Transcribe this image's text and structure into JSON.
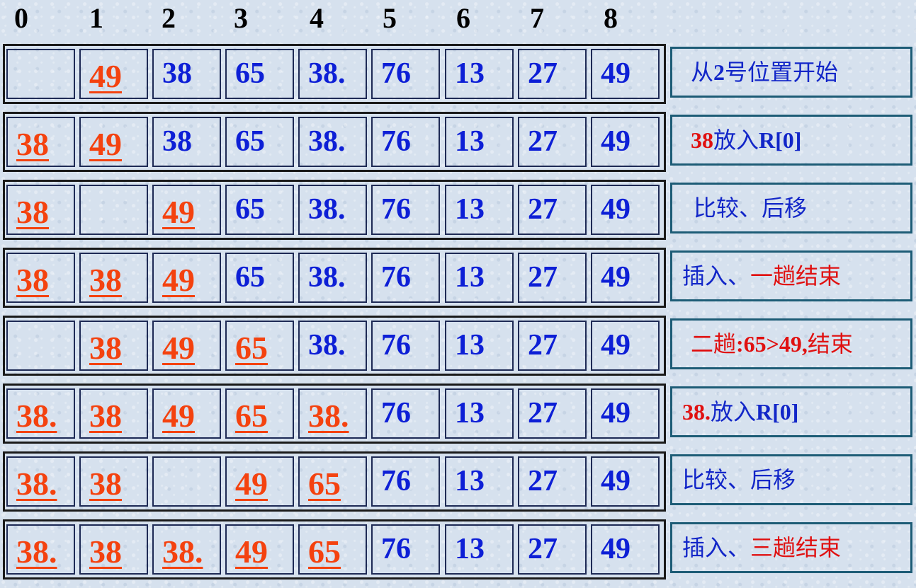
{
  "indices": [
    "0",
    "1",
    "2",
    "3",
    "4",
    "5",
    "6",
    "7",
    "8"
  ],
  "colors": {
    "blue": "#0d1fd6",
    "red": "#f4420f",
    "note_text": "#1226c8",
    "note_red": "#e01010"
  },
  "rows": [
    {
      "cells": [
        {
          "v": "",
          "c": "blue"
        },
        {
          "v": "49",
          "c": "red"
        },
        {
          "v": "38",
          "c": "blue"
        },
        {
          "v": "65",
          "c": "blue"
        },
        {
          "v": "38.",
          "c": "blue"
        },
        {
          "v": "76",
          "c": "blue"
        },
        {
          "v": "13",
          "c": "blue"
        },
        {
          "v": "27",
          "c": "blue"
        },
        {
          "v": "49",
          "c": "blue"
        }
      ],
      "note": [
        {
          "t": "从",
          "c": "blue"
        },
        {
          "t": "2",
          "c": "blue",
          "b": true
        },
        {
          "t": "号位置开始",
          "c": "blue"
        }
      ]
    },
    {
      "cells": [
        {
          "v": "38",
          "c": "red"
        },
        {
          "v": "49",
          "c": "red"
        },
        {
          "v": "38",
          "c": "blue"
        },
        {
          "v": "65",
          "c": "blue"
        },
        {
          "v": "38.",
          "c": "blue"
        },
        {
          "v": "76",
          "c": "blue"
        },
        {
          "v": "13",
          "c": "blue"
        },
        {
          "v": "27",
          "c": "blue"
        },
        {
          "v": "49",
          "c": "blue"
        }
      ],
      "note": [
        {
          "t": "38",
          "c": "red",
          "b": true
        },
        {
          "t": "放入",
          "c": "blue"
        },
        {
          "t": "R[0]",
          "c": "blue",
          "b": true
        }
      ]
    },
    {
      "cells": [
        {
          "v": "38",
          "c": "red"
        },
        {
          "v": "",
          "c": "blue"
        },
        {
          "v": "49",
          "c": "red"
        },
        {
          "v": "65",
          "c": "blue"
        },
        {
          "v": "38.",
          "c": "blue"
        },
        {
          "v": "76",
          "c": "blue"
        },
        {
          "v": "13",
          "c": "blue"
        },
        {
          "v": "27",
          "c": "blue"
        },
        {
          "v": "49",
          "c": "blue"
        }
      ],
      "note": [
        {
          "t": "比较、后移",
          "c": "blue"
        }
      ]
    },
    {
      "cells": [
        {
          "v": "38",
          "c": "red"
        },
        {
          "v": "38",
          "c": "red"
        },
        {
          "v": "49",
          "c": "red"
        },
        {
          "v": "65",
          "c": "blue"
        },
        {
          "v": "38.",
          "c": "blue"
        },
        {
          "v": "76",
          "c": "blue"
        },
        {
          "v": "13",
          "c": "blue"
        },
        {
          "v": "27",
          "c": "blue"
        },
        {
          "v": "49",
          "c": "blue"
        }
      ],
      "note": [
        {
          "t": "插入、",
          "c": "blue"
        },
        {
          "t": "一趟结束",
          "c": "red"
        }
      ]
    },
    {
      "cells": [
        {
          "v": "",
          "c": "blue"
        },
        {
          "v": "38",
          "c": "red"
        },
        {
          "v": "49",
          "c": "red"
        },
        {
          "v": "65",
          "c": "red"
        },
        {
          "v": "38.",
          "c": "blue"
        },
        {
          "v": "76",
          "c": "blue"
        },
        {
          "v": "13",
          "c": "blue"
        },
        {
          "v": "27",
          "c": "blue"
        },
        {
          "v": "49",
          "c": "blue"
        }
      ],
      "note": [
        {
          "t": "二趟",
          "c": "red"
        },
        {
          "t": ":65>49,",
          "c": "red",
          "b": true
        },
        {
          "t": "结束",
          "c": "red"
        }
      ]
    },
    {
      "cells": [
        {
          "v": "38.",
          "c": "red"
        },
        {
          "v": "38",
          "c": "red"
        },
        {
          "v": "49",
          "c": "red"
        },
        {
          "v": "65",
          "c": "red"
        },
        {
          "v": "38.",
          "c": "red"
        },
        {
          "v": "76",
          "c": "blue"
        },
        {
          "v": "13",
          "c": "blue"
        },
        {
          "v": "27",
          "c": "blue"
        },
        {
          "v": "49",
          "c": "blue"
        }
      ],
      "note": [
        {
          "t": "38.",
          "c": "red",
          "b": true
        },
        {
          "t": "放入",
          "c": "blue"
        },
        {
          "t": "R[0]",
          "c": "blue",
          "b": true
        }
      ]
    },
    {
      "cells": [
        {
          "v": "38.",
          "c": "red"
        },
        {
          "v": "38",
          "c": "red"
        },
        {
          "v": "",
          "c": "blue"
        },
        {
          "v": "49",
          "c": "red"
        },
        {
          "v": "65",
          "c": "red"
        },
        {
          "v": "76",
          "c": "blue"
        },
        {
          "v": "13",
          "c": "blue"
        },
        {
          "v": "27",
          "c": "blue"
        },
        {
          "v": "49",
          "c": "blue"
        }
      ],
      "note": [
        {
          "t": "比较、后移",
          "c": "blue"
        }
      ]
    },
    {
      "cells": [
        {
          "v": "38.",
          "c": "red"
        },
        {
          "v": "38",
          "c": "red"
        },
        {
          "v": "38.",
          "c": "red"
        },
        {
          "v": "49",
          "c": "red"
        },
        {
          "v": "65",
          "c": "red"
        },
        {
          "v": "76",
          "c": "blue"
        },
        {
          "v": "13",
          "c": "blue"
        },
        {
          "v": "27",
          "c": "blue"
        },
        {
          "v": "49",
          "c": "blue"
        }
      ],
      "note": [
        {
          "t": "插入、",
          "c": "blue"
        },
        {
          "t": "三趟结束",
          "c": "red"
        }
      ]
    }
  ]
}
